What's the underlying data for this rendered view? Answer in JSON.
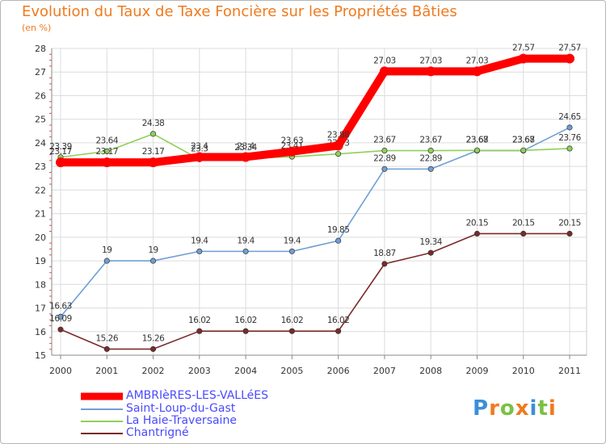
{
  "header": {
    "title": "Evolution du Taux de Taxe Foncière sur les Propriétés Bâties",
    "subtitle": "(en %)"
  },
  "logo": {
    "text": "Proxiti",
    "letters": [
      "P",
      "r",
      "o",
      "x",
      "i",
      "t",
      "i"
    ],
    "colors": [
      "#3b8fd8",
      "#f07a1f",
      "#7ac143",
      "#f07a1f",
      "#3b8fd8",
      "#7ac143",
      "#f07a1f"
    ]
  },
  "chart_data": {
    "type": "line",
    "x": [
      "2000",
      "2001",
      "2002",
      "2003",
      "2004",
      "2005",
      "2006",
      "2007",
      "2008",
      "2009",
      "2010",
      "2011"
    ],
    "ylim": [
      15,
      28
    ],
    "yticks": [
      15,
      16,
      17,
      18,
      19,
      20,
      21,
      22,
      23,
      24,
      25,
      26,
      27,
      28
    ],
    "grid": true,
    "series": [
      {
        "name": "AMBRIèRES-LES-VALLéES",
        "color": "#ff0000",
        "values": [
          23.17,
          23.17,
          23.17,
          23.4,
          23.4,
          23.63,
          23.88,
          27.03,
          27.03,
          27.03,
          27.57,
          27.57
        ],
        "labels": [
          "23.17",
          "23.17",
          "23.17",
          "23.4",
          "23.4",
          "23.63",
          "23.88",
          "27.03",
          "27.03",
          "27.03",
          "27.57",
          "27.57"
        ]
      },
      {
        "name": "Saint-Loup-du-Gast",
        "color": "#6f9fd4",
        "values": [
          16.63,
          19,
          19,
          19.4,
          19.4,
          19.4,
          19.85,
          22.89,
          22.89,
          23.67,
          23.67,
          24.65
        ],
        "labels": [
          "16.63",
          "19",
          "19",
          "19.4",
          "19.4",
          "19.4",
          "19.85",
          "22.89",
          "22.89",
          "23.67",
          "23.67",
          "24.65"
        ]
      },
      {
        "name": "La Haie-Traversaine",
        "color": "#8fd05a",
        "values": [
          23.39,
          23.64,
          24.38,
          23.3,
          23.34,
          23.41,
          23.53,
          23.67,
          23.67,
          23.68,
          23.68,
          23.76
        ],
        "labels": [
          "23.39",
          "23.64",
          "24.38",
          "23.3",
          "23.34",
          "23.41",
          "23.53",
          "23.67",
          "23.67",
          "23.68",
          "23.68",
          "23.76"
        ]
      },
      {
        "name": "Chantrigné",
        "color": "#7b2a2a",
        "values": [
          16.09,
          15.26,
          15.26,
          16.02,
          16.02,
          16.02,
          16.02,
          18.87,
          19.34,
          20.15,
          20.15,
          20.15
        ],
        "labels": [
          "16.09",
          "15.26",
          "15.26",
          "16.02",
          "16.02",
          "16.02",
          "16.02",
          "18.87",
          "19.34",
          "20.15",
          "20.15",
          "20.15"
        ]
      }
    ]
  }
}
